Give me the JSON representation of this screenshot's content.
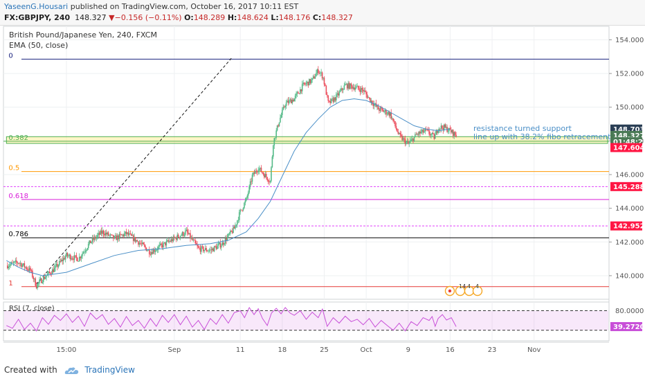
{
  "header": {
    "author": "YaseenG.Housari",
    "published_text": "published on TradingView.com, October 16, 2017 10:11 EST",
    "symbol": "FX:GBPJPY, 240",
    "last": "148.327",
    "change": "−0.156 (−0.11%)",
    "open_label": "O:",
    "open": "148.289",
    "high_label": "H:",
    "high": "148.624",
    "low_label": "L:",
    "low": "148.176",
    "close_label": "C:",
    "close": "148.327"
  },
  "footer": {
    "created_label": "Created with",
    "brand": "TradingView"
  },
  "colors": {
    "up": "#53b987",
    "down": "#eb4d5c",
    "ema": "#4a8fc7",
    "rsi": "#c84fd8",
    "text_blue": "#4a8fc7"
  },
  "chart_data": {
    "type": "candlestick",
    "title": "British Pound/Japanese Yen, 240, FXCM",
    "indicator_label": "EMA (50, close)",
    "ylim": [
      138.6,
      154.8
    ],
    "y_ticks": [
      "154.000",
      "152.000",
      "150.000",
      "148.000",
      "146.000",
      "144.000",
      "142.000",
      "140.000"
    ],
    "x_ticks": [
      "15:00",
      "Sep",
      "11",
      "18",
      "25",
      "Oct",
      "9",
      "16",
      "23",
      "Nov"
    ],
    "x_ticks_day": [
      -19,
      -1,
      10,
      17,
      24,
      31,
      38,
      45,
      52,
      59
    ],
    "price_path": [
      [
        -29,
        140.6
      ],
      [
        -27,
        140.8
      ],
      [
        -25,
        140.3
      ],
      [
        -24,
        139.4
      ],
      [
        -23,
        139.8
      ],
      [
        -21,
        140.4
      ],
      [
        -19,
        141.2
      ],
      [
        -17,
        141.0
      ],
      [
        -15,
        142.0
      ],
      [
        -13,
        142.6
      ],
      [
        -11,
        142.2
      ],
      [
        -9,
        142.5
      ],
      [
        -7,
        142.0
      ],
      [
        -5,
        141.4
      ],
      [
        -3,
        141.8
      ],
      [
        -1,
        142.2
      ],
      [
        1,
        142.6
      ],
      [
        3,
        141.6
      ],
      [
        5,
        141.5
      ],
      [
        7,
        141.9
      ],
      [
        9,
        142.8
      ],
      [
        10,
        143.8
      ],
      [
        11,
        144.5
      ],
      [
        12,
        145.9
      ],
      [
        13,
        146.4
      ],
      [
        14,
        146.0
      ],
      [
        15,
        145.6
      ],
      [
        15.5,
        147.9
      ],
      [
        16.5,
        149.2
      ],
      [
        17.5,
        150.2
      ],
      [
        19,
        150.5
      ],
      [
        20.5,
        151.3
      ],
      [
        22,
        151.6
      ],
      [
        23,
        152.2
      ],
      [
        23.8,
        151.8
      ],
      [
        24.7,
        150.2
      ],
      [
        26,
        150.6
      ],
      [
        27.5,
        151.3
      ],
      [
        29,
        151.2
      ],
      [
        30.5,
        151.0
      ],
      [
        31.5,
        150.5
      ],
      [
        33,
        149.9
      ],
      [
        35,
        149.6
      ],
      [
        36.5,
        148.3
      ],
      [
        38,
        147.8
      ],
      [
        39.5,
        148.4
      ],
      [
        41,
        148.6
      ],
      [
        42.4,
        148.2
      ],
      [
        43,
        148.8
      ],
      [
        44,
        148.8
      ],
      [
        45,
        148.6
      ],
      [
        46,
        148.327
      ]
    ],
    "ema": [
      [
        -29,
        140.9
      ],
      [
        -27,
        140.5
      ],
      [
        -25,
        140.2
      ],
      [
        -23,
        140.0
      ],
      [
        -19,
        140.2
      ],
      [
        -15,
        140.7
      ],
      [
        -11,
        141.2
      ],
      [
        -7,
        141.5
      ],
      [
        -3,
        141.6
      ],
      [
        1,
        141.8
      ],
      [
        5,
        141.9
      ],
      [
        8,
        142.1
      ],
      [
        11,
        142.6
      ],
      [
        13,
        143.4
      ],
      [
        15,
        144.4
      ],
      [
        17,
        145.9
      ],
      [
        19,
        147.4
      ],
      [
        21,
        148.5
      ],
      [
        23,
        149.3
      ],
      [
        25,
        150.0
      ],
      [
        27,
        150.4
      ],
      [
        29,
        150.5
      ],
      [
        31,
        150.4
      ],
      [
        33,
        150.1
      ],
      [
        35,
        149.7
      ],
      [
        37,
        149.3
      ],
      [
        39,
        148.9
      ],
      [
        41,
        148.7
      ],
      [
        43,
        148.6
      ],
      [
        45,
        148.7
      ]
    ],
    "fib_levels": [
      {
        "label": "0",
        "price": 152.85,
        "color": "#1a237e",
        "dashed": false
      },
      {
        "label": "0.382",
        "price": 147.98,
        "color": "#4caf50",
        "dashed": false
      },
      {
        "label": "0.5",
        "price": 146.18,
        "color": "#ff9800",
        "dashed": false
      },
      {
        "label": "0.618",
        "price": 144.52,
        "color": "#d81bd8",
        "dashed": false
      },
      {
        "label": "0.786",
        "price": 142.25,
        "color": "#000000",
        "dashed": false
      },
      {
        "label": "1",
        "price": 139.35,
        "color": "#e53935",
        "dashed": false
      }
    ],
    "extra_levels": [
      {
        "price": 145.288,
        "color": "#e040fb"
      },
      {
        "price": 142.952,
        "color": "#e040fb"
      }
    ],
    "price_tags": [
      {
        "label": "148.703",
        "price": 148.703,
        "color": "#2b3f55"
      },
      {
        "label": "148.327",
        "price": 148.327,
        "color": "#4a7a55"
      },
      {
        "label": "01:48:29",
        "price": 147.95,
        "color": "#4a7a55"
      },
      {
        "label": "147.604",
        "price": 147.604,
        "color": "#ff1744"
      },
      {
        "label": "145.288",
        "price": 145.288,
        "color": "#ff1744"
      },
      {
        "label": "142.952",
        "price": 142.952,
        "color": "#ff1744"
      }
    ],
    "trendline": {
      "from": [
        -24,
        139.5
      ],
      "to": [
        8.5,
        152.9
      ]
    },
    "support_box": {
      "from": [
        -29,
        148.25
      ],
      "to": [
        83,
        147.85
      ]
    },
    "annotation": [
      "resistance turned support",
      "line up with 38.2% fibo retracement"
    ],
    "rsi": {
      "label": "RSI (7, close)",
      "ylim": [
        10,
        95
      ],
      "band": [
        30,
        80
      ],
      "ticks": [
        "80.0000"
      ],
      "last_label": "39.2720",
      "last": 39.272,
      "values": [
        [
          -29,
          42
        ],
        [
          -28,
          35
        ],
        [
          -27,
          58
        ],
        [
          -26,
          32
        ],
        [
          -25,
          48
        ],
        [
          -24,
          28
        ],
        [
          -23,
          62
        ],
        [
          -22,
          45
        ],
        [
          -21,
          68
        ],
        [
          -20,
          55
        ],
        [
          -19,
          72
        ],
        [
          -18,
          50
        ],
        [
          -17,
          66
        ],
        [
          -16,
          40
        ],
        [
          -15,
          74
        ],
        [
          -14,
          58
        ],
        [
          -13,
          70
        ],
        [
          -12,
          45
        ],
        [
          -11,
          60
        ],
        [
          -10,
          38
        ],
        [
          -9,
          65
        ],
        [
          -8,
          42
        ],
        [
          -7,
          55
        ],
        [
          -6,
          35
        ],
        [
          -5,
          60
        ],
        [
          -4,
          40
        ],
        [
          -3,
          68
        ],
        [
          -2,
          50
        ],
        [
          -1,
          70
        ],
        [
          0,
          44
        ],
        [
          1,
          66
        ],
        [
          2,
          38
        ],
        [
          3,
          55
        ],
        [
          4,
          32
        ],
        [
          5,
          60
        ],
        [
          6,
          45
        ],
        [
          7,
          70
        ],
        [
          8,
          48
        ],
        [
          9,
          75
        ],
        [
          10,
          80
        ],
        [
          10.7,
          62
        ],
        [
          11.5,
          88
        ],
        [
          12.3,
          70
        ],
        [
          13,
          85
        ],
        [
          13.7,
          60
        ],
        [
          14.5,
          42
        ],
        [
          15.2,
          74
        ],
        [
          16,
          86
        ],
        [
          16.8,
          72
        ],
        [
          17.5,
          88
        ],
        [
          18.3,
          74
        ],
        [
          19,
          68
        ],
        [
          20,
          80
        ],
        [
          21,
          58
        ],
        [
          22,
          76
        ],
        [
          23,
          62
        ],
        [
          23.7,
          84
        ],
        [
          24.5,
          40
        ],
        [
          25.5,
          62
        ],
        [
          26.5,
          48
        ],
        [
          27.5,
          66
        ],
        [
          28.5,
          52
        ],
        [
          29.5,
          58
        ],
        [
          30.5,
          44
        ],
        [
          31.5,
          60
        ],
        [
          32.5,
          38
        ],
        [
          33.5,
          55
        ],
        [
          34.5,
          42
        ],
        [
          35.5,
          30
        ],
        [
          36.5,
          48
        ],
        [
          37.5,
          28
        ],
        [
          38.5,
          52
        ],
        [
          39.5,
          42
        ],
        [
          40.5,
          62
        ],
        [
          41.5,
          55
        ],
        [
          42,
          65
        ],
        [
          42.5,
          40
        ],
        [
          43,
          60
        ],
        [
          43.7,
          70
        ],
        [
          44.4,
          56
        ],
        [
          45.2,
          62
        ],
        [
          46,
          39.272
        ]
      ]
    },
    "events": [
      "14",
      "4",
      "4"
    ]
  }
}
